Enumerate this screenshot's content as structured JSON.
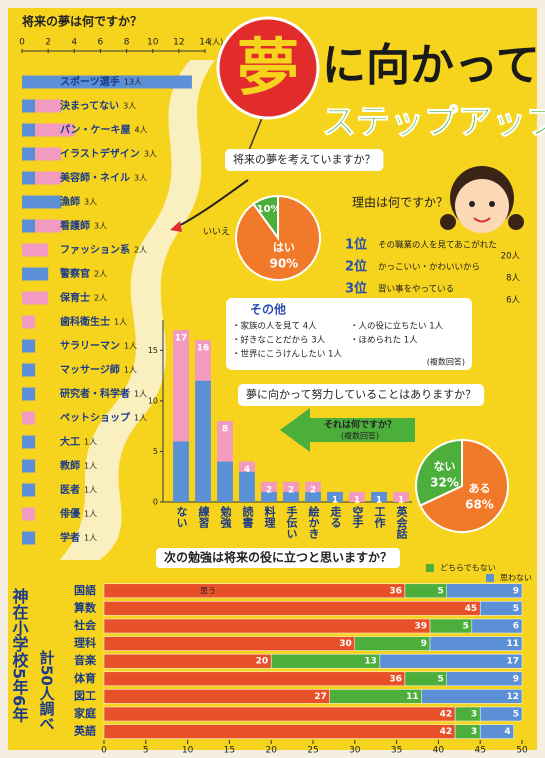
{
  "poster": {
    "title_kanji": "夢",
    "title_rest": "に向かって",
    "subtitle": "ステップアップ",
    "school": "神在小学校5年6年",
    "count": "計50人調べ"
  },
  "reasons": {
    "heading": "理由は何ですか？",
    "ranks": [
      {
        "rank": "1位",
        "text": "その職業の人を見てあこがれた",
        "count": "20人"
      },
      {
        "rank": "2位",
        "text": "かっこいい・かわいいから",
        "count": "8人"
      },
      {
        "rank": "3位",
        "text": "習い事をやっている",
        "count": "6人"
      }
    ]
  },
  "others": {
    "heading": "その他",
    "items": [
      "・家族の人を見て 4人",
      "・好きなことだから 3人",
      "・世界にこうけんしたい 1人",
      "・人の役に立ちたい 1人",
      "・ほめられた 1人"
    ],
    "note": "(複数回答)"
  },
  "chart_data": [
    {
      "type": "hbar",
      "title": "将来の夢は何ですか？",
      "xlabel": "(人)",
      "categories": [
        "スポーツ選手",
        "決まってない",
        "パン・ケーキ屋",
        "イラストデザイン",
        "美容師・ネイル",
        "漁師",
        "看護師",
        "ファッション系",
        "警察官",
        "保育士",
        "歯科衛生士",
        "サラリーマン",
        "マッサージ師",
        "研究者・科学者",
        "ペットショップ",
        "大工",
        "教師",
        "医者",
        "俳優",
        "学者"
      ],
      "values": [
        13,
        3,
        4,
        3,
        3,
        3,
        3,
        2,
        2,
        2,
        1,
        1,
        1,
        1,
        1,
        1,
        1,
        1,
        1,
        1
      ],
      "value_labels": [
        "13人",
        "3人",
        "4人",
        "3人",
        "3人",
        "3人",
        "3人",
        "2人",
        "2人",
        "2人",
        "1人",
        "1人",
        "1人",
        "1人",
        "1人",
        "1人",
        "1人",
        "1人",
        "1人",
        "1人"
      ],
      "series": [
        {
          "color": "#5b8fd6",
          "values": [
            13,
            1,
            1,
            1,
            1,
            3,
            1,
            0,
            2,
            0,
            0,
            1,
            1,
            1,
            0,
            1,
            1,
            1,
            0,
            1
          ]
        },
        {
          "color": "#f29ac0",
          "values": [
            0,
            2,
            3,
            2,
            2,
            0,
            2,
            2,
            0,
            2,
            1,
            0,
            0,
            0,
            1,
            0,
            0,
            0,
            1,
            0
          ]
        }
      ],
      "xlim": [
        0,
        14
      ],
      "xticks": [
        0,
        2,
        4,
        6,
        8,
        10,
        12,
        14
      ]
    },
    {
      "type": "pie",
      "title": "将来の夢を考えていますか？",
      "categories": [
        "いいえ",
        "はい"
      ],
      "values": [
        10,
        90
      ],
      "value_labels": [
        "10%",
        "90%"
      ],
      "colors": [
        "#4caf3c",
        "#f07a2a"
      ]
    },
    {
      "type": "vbar",
      "title": "それは何ですか？",
      "subtitle": "(複数回答)",
      "categories": [
        "ない",
        "練習",
        "勉強",
        "読書",
        "料理",
        "手伝い",
        "絵かき",
        "走る",
        "空手",
        "工作",
        "英会話"
      ],
      "values": [
        17,
        16,
        8,
        4,
        2,
        2,
        2,
        1,
        1,
        1,
        1
      ],
      "series": [
        {
          "color": "#5b8fd6",
          "values": [
            6,
            12,
            4,
            3,
            1,
            1,
            1,
            1,
            0,
            1,
            0
          ]
        },
        {
          "color": "#f29ac0",
          "values": [
            11,
            4,
            4,
            1,
            1,
            1,
            1,
            0,
            1,
            0,
            1
          ]
        }
      ],
      "ylim": [
        0,
        18
      ],
      "yticks": [
        0,
        5,
        10,
        15
      ]
    },
    {
      "type": "pie",
      "title": "夢に向かって努力していることはありますか？",
      "categories": [
        "ない",
        "ある"
      ],
      "values": [
        32,
        68
      ],
      "value_labels": [
        "32%",
        "68%"
      ],
      "colors": [
        "#4caf3c",
        "#f07a2a"
      ]
    },
    {
      "type": "hbar",
      "title": "次の勉強は将来の役に立つと思いますか？",
      "categories": [
        "国語",
        "算数",
        "社会",
        "理科",
        "音楽",
        "体育",
        "図工",
        "家庭",
        "英語"
      ],
      "series": [
        {
          "name": "思う",
          "color": "#e8502a",
          "values": [
            36,
            45,
            39,
            30,
            20,
            36,
            27,
            42,
            42
          ]
        },
        {
          "name": "どちらでもない",
          "color": "#4caf3c",
          "values": [
            5,
            null,
            5,
            9,
            13,
            5,
            11,
            3,
            3
          ]
        },
        {
          "name": "思わない",
          "color": "#5b8fd6",
          "values": [
            9,
            5,
            6,
            11,
            17,
            9,
            12,
            5,
            4
          ]
        }
      ],
      "xlim": [
        0,
        50
      ],
      "xticks": [
        0,
        5,
        10,
        15,
        20,
        25,
        30,
        35,
        40,
        45,
        50
      ]
    }
  ]
}
